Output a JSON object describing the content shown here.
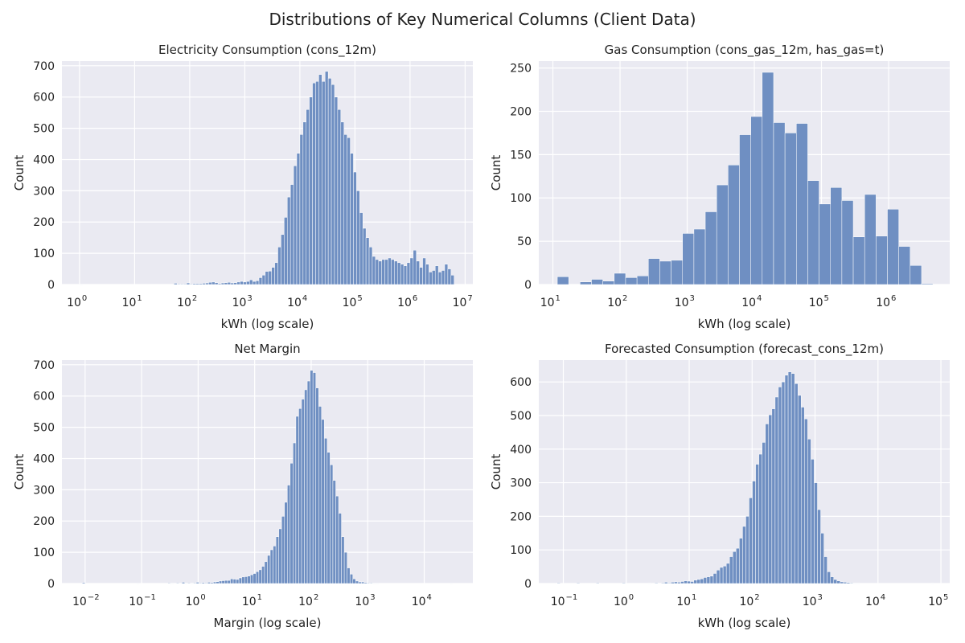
{
  "figure": {
    "suptitle": "Distributions of Key Numerical Columns (Client Data)"
  },
  "colors": {
    "bar_fill": "#6f8fc2",
    "bar_edge": "#ffffff",
    "axes_bg": "#eaeaf2",
    "grid": "#ffffff"
  },
  "chart_data": [
    {
      "type": "bar",
      "title": "Electricity Consumption (cons_12m)",
      "xlabel": "kWh (log scale)",
      "ylabel": "Count",
      "xscale": "log",
      "xlim_log10": [
        -0.32,
        7.14
      ],
      "ylim": [
        0,
        715
      ],
      "xticks": {
        "base": "10",
        "exponents": [
          "0",
          "1",
          "2",
          "3",
          "4",
          "5",
          "6",
          "7"
        ]
      },
      "yticks": [
        "0",
        "100",
        "200",
        "300",
        "400",
        "500",
        "600",
        "700"
      ],
      "bins_log10": [
        0.0,
        6.8
      ],
      "counts": [
        1,
        0,
        0,
        0,
        0,
        0,
        0,
        0,
        0,
        0,
        0,
        0,
        0,
        0,
        0,
        0,
        0,
        0,
        0,
        0,
        0,
        0,
        0,
        0,
        0,
        0,
        0,
        0,
        0,
        0,
        4,
        2,
        2,
        2,
        5,
        2,
        3,
        3,
        3,
        4,
        5,
        7,
        8,
        6,
        3,
        5,
        6,
        7,
        5,
        6,
        8,
        10,
        8,
        10,
        15,
        10,
        12,
        22,
        30,
        42,
        43,
        55,
        70,
        120,
        160,
        215,
        280,
        320,
        380,
        420,
        480,
        520,
        560,
        600,
        645,
        650,
        672,
        650,
        682,
        660,
        640,
        600,
        560,
        520,
        480,
        470,
        420,
        360,
        300,
        230,
        180,
        150,
        120,
        90,
        80,
        75,
        80,
        80,
        85,
        80,
        75,
        70,
        65,
        60,
        70,
        85,
        110,
        75,
        55,
        85,
        65,
        40,
        45,
        60,
        40,
        45,
        65,
        50,
        30
      ],
      "grid": true,
      "legend": "none"
    },
    {
      "type": "bar",
      "title": "Gas Consumption (cons_gas_12m, has_gas=t)",
      "xlabel": "kWh (log scale)",
      "ylabel": "Count",
      "xscale": "log",
      "xlim_log10": [
        0.79,
        6.91
      ],
      "ylim": [
        0,
        258
      ],
      "xticks": {
        "base": "10",
        "exponents": [
          "1",
          "2",
          "3",
          "4",
          "5",
          "6"
        ]
      },
      "yticks": [
        "0",
        "50",
        "100",
        "150",
        "200",
        "250"
      ],
      "bins_log10": [
        1.066,
        6.66
      ],
      "counts": [
        9,
        0,
        3,
        6,
        4,
        13,
        8,
        10,
        30,
        27,
        28,
        59,
        64,
        84,
        115,
        138,
        173,
        194,
        245,
        187,
        175,
        186,
        120,
        93,
        112,
        97,
        55,
        104,
        56,
        87,
        44,
        22,
        1
      ],
      "grid": true,
      "legend": "none"
    },
    {
      "type": "bar",
      "title": "Net Margin",
      "xlabel": "Margin (log scale)",
      "ylabel": "Count",
      "xscale": "log",
      "xlim_log10": [
        -2.41,
        4.86
      ],
      "ylim": [
        0,
        715
      ],
      "xticks": {
        "base": "10",
        "exponents": [
          "−2",
          "−1",
          "0",
          "1",
          "2",
          "3",
          "4"
        ]
      },
      "yticks": [
        "0",
        "100",
        "200",
        "300",
        "400",
        "500",
        "600",
        "700"
      ],
      "bins_log10": [
        -2.05,
        4.5
      ],
      "counts": [
        3,
        0,
        0,
        0,
        0,
        0,
        0,
        0,
        0,
        0,
        0,
        0,
        0,
        0,
        0,
        0,
        0,
        0,
        0,
        1,
        0,
        0,
        0,
        0,
        0,
        0,
        0,
        0,
        0,
        0,
        2,
        1,
        0,
        2,
        0,
        4,
        1,
        2,
        1,
        2,
        4,
        2,
        3,
        2,
        4,
        3,
        5,
        6,
        8,
        9,
        10,
        10,
        15,
        14,
        13,
        18,
        21,
        22,
        24,
        28,
        32,
        38,
        44,
        55,
        70,
        90,
        108,
        120,
        150,
        175,
        215,
        260,
        315,
        385,
        450,
        535,
        560,
        590,
        620,
        648,
        682,
        675,
        626,
        567,
        525,
        465,
        420,
        380,
        330,
        280,
        225,
        150,
        100,
        50,
        30,
        15,
        8,
        5,
        5,
        3,
        2,
        2,
        1,
        1,
        0,
        0,
        0,
        0,
        0,
        0,
        0,
        0,
        0,
        0,
        0,
        0,
        0,
        0,
        0,
        0,
        0,
        0,
        0,
        0,
        0,
        0,
        0,
        0,
        0,
        1
      ],
      "grid": true,
      "legend": "none"
    },
    {
      "type": "bar",
      "title": "Forecasted Consumption (forecast_cons_12m)",
      "xlabel": "kWh (log scale)",
      "ylabel": "Count",
      "xscale": "log",
      "xlim_log10": [
        -1.39,
        5.14
      ],
      "ylim": [
        0,
        665
      ],
      "xticks": {
        "base": "10",
        "exponents": [
          "−1",
          "0",
          "1",
          "2",
          "3",
          "4",
          "5"
        ]
      },
      "yticks": [
        "0",
        "100",
        "200",
        "300",
        "400",
        "500",
        "600"
      ],
      "bins_log10": [
        -1.1,
        4.9
      ],
      "counts": [
        2,
        0,
        0,
        0,
        0,
        0,
        2,
        0,
        0,
        0,
        0,
        0,
        2,
        0,
        0,
        0,
        0,
        0,
        0,
        0,
        2,
        0,
        0,
        0,
        0,
        0,
        0,
        0,
        1,
        0,
        2,
        0,
        2,
        4,
        2,
        4,
        5,
        4,
        6,
        8,
        7,
        6,
        10,
        12,
        14,
        18,
        20,
        22,
        30,
        40,
        48,
        52,
        60,
        80,
        95,
        105,
        135,
        170,
        200,
        255,
        305,
        355,
        385,
        420,
        475,
        502,
        520,
        555,
        585,
        600,
        620,
        630,
        625,
        595,
        560,
        525,
        490,
        430,
        370,
        300,
        220,
        150,
        80,
        35,
        20,
        12,
        8,
        5,
        4,
        3,
        2,
        1,
        1,
        0,
        0,
        0,
        0,
        0,
        0,
        0,
        0,
        0,
        0,
        0,
        0,
        0,
        0,
        0,
        0,
        0,
        0,
        0,
        0,
        0,
        0,
        1
      ],
      "grid": true,
      "legend": "none"
    }
  ]
}
